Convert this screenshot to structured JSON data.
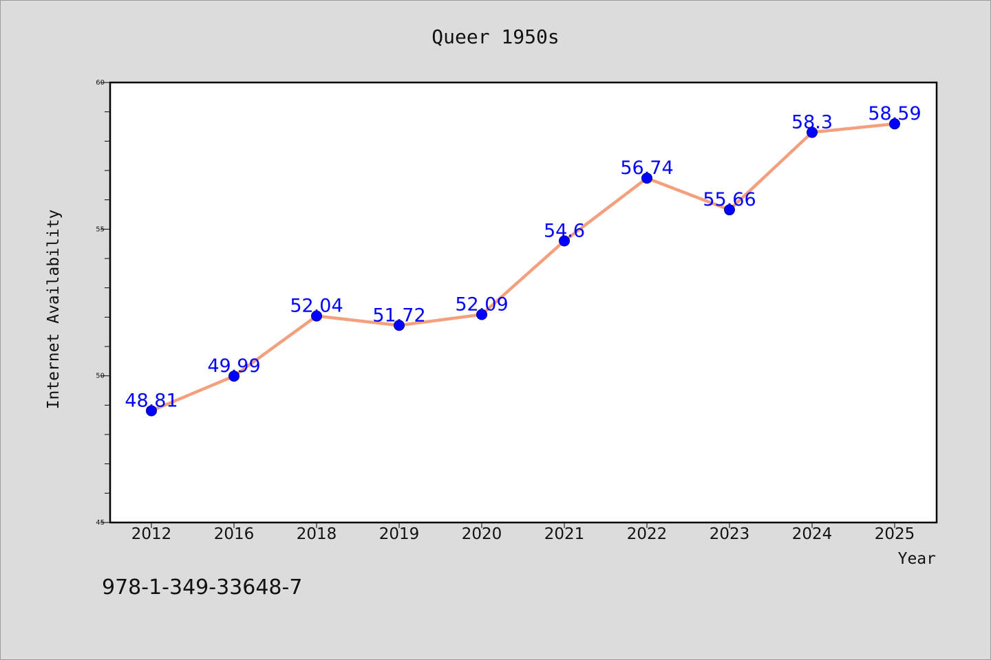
{
  "chart_data": {
    "type": "line",
    "title": "Queer 1950s",
    "xlabel": "Year",
    "ylabel": "Internet Availability",
    "categories": [
      "2012",
      "2016",
      "2018",
      "2019",
      "2020",
      "2021",
      "2022",
      "2023",
      "2024",
      "2025"
    ],
    "series": [
      {
        "values": [
          48.81,
          49.99,
          52.04,
          51.72,
          52.09,
          54.6,
          56.74,
          55.66,
          58.3,
          58.59
        ],
        "data_labels": [
          "48.81",
          "49.99",
          "52.04",
          "51.72",
          "52.09",
          "54.6",
          "56.74",
          "55.66",
          "58.3",
          "58.59"
        ]
      }
    ],
    "ylim": [
      45,
      60
    ],
    "y_ticks": [
      45,
      50,
      55,
      60
    ],
    "y_tick_labels": [
      "45",
      "50",
      "55",
      "60"
    ],
    "grid": false,
    "colors": {
      "line": "#f4a07e",
      "marker": "#0000ff",
      "label": "#0000ff"
    }
  },
  "footer": {
    "isbn": "978-1-349-33648-7"
  }
}
